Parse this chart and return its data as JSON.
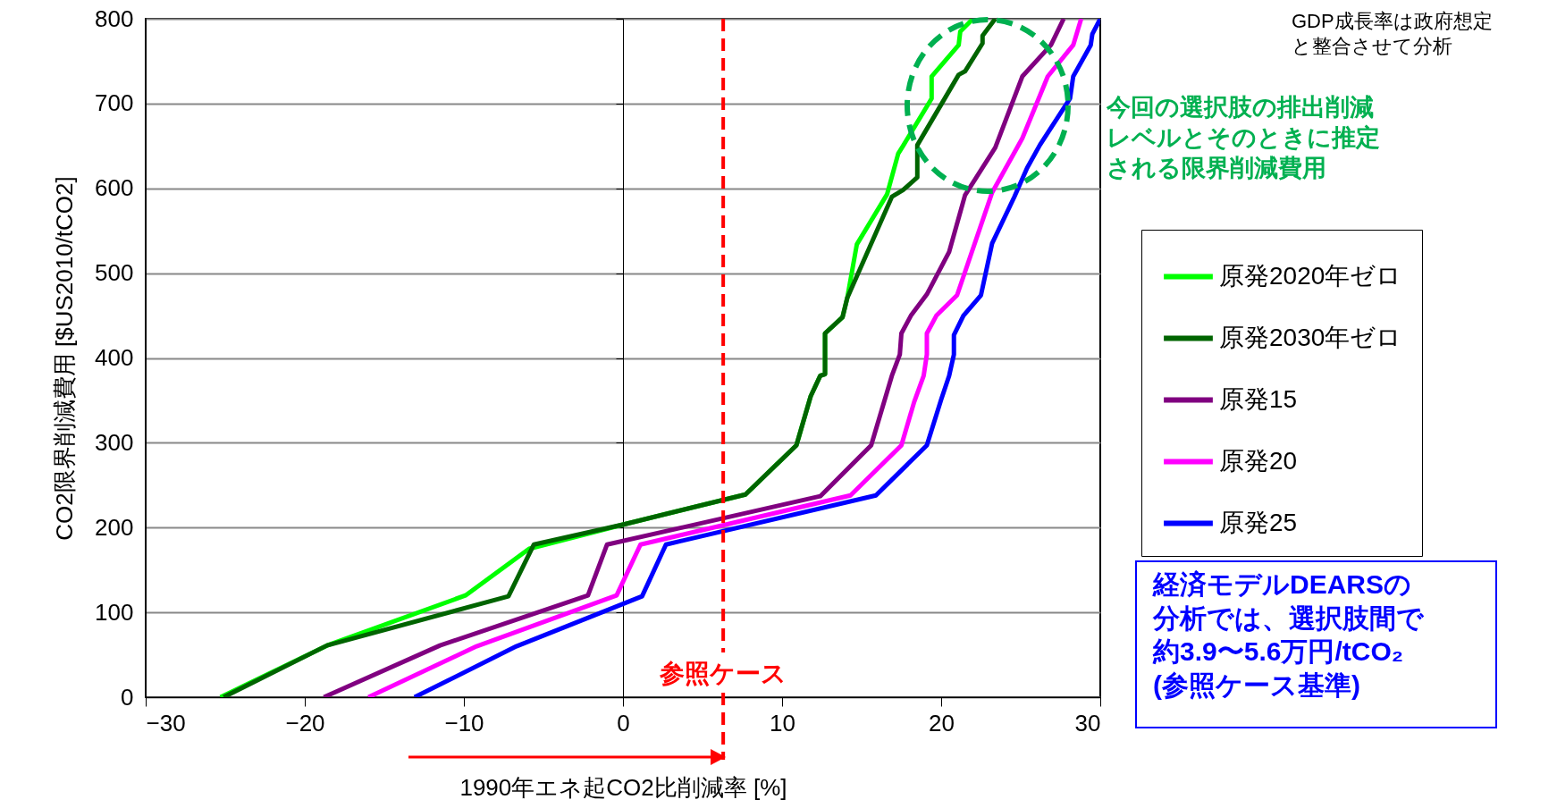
{
  "chart_data": {
    "type": "line",
    "xlabel": "1990年エネ起CO2比削減率 [%]",
    "ylabel": "CO2限界削減費用 [$US2010/tCO2]",
    "xlim": [
      -30,
      30
    ],
    "xticks": [
      -30,
      -20,
      -10,
      0,
      10,
      20,
      30
    ],
    "ylim": [
      0,
      800
    ],
    "yticks": [
      0,
      100,
      200,
      300,
      400,
      500,
      600,
      700,
      800
    ],
    "grid": "y",
    "legend": "right",
    "line_style": "solid",
    "marker": "none",
    "series": [
      {
        "name": "原発2020年ゼロ",
        "color": "#00ff00",
        "x": [
          -25.3,
          -18.6,
          -9.9,
          -5.9,
          0.1,
          7.7,
          10.9,
          11.8,
          12.4,
          12.7,
          12.7,
          13.8,
          14.1,
          14.7,
          16.6,
          17.3,
          17.6,
          19.4,
          19.4,
          21.1,
          21.2,
          22.0
        ],
        "values": [
          0,
          61,
          120,
          175,
          204,
          239,
          297,
          355,
          379,
          381,
          429,
          448,
          471,
          534,
          593,
          641,
          650,
          706,
          732,
          769,
          785,
          800
        ]
      },
      {
        "name": "原発2030年ゼロ",
        "color": "#006400",
        "x": [
          -25.1,
          -18.6,
          -7.2,
          -5.6,
          0.1,
          7.7,
          10.9,
          11.8,
          12.4,
          12.7,
          12.7,
          13.8,
          14.1,
          16.9,
          17.6,
          18.5,
          18.5,
          21.1,
          21.5,
          22.6,
          22.6,
          23.4
        ],
        "values": [
          0,
          61,
          119,
          180,
          204,
          239,
          297,
          355,
          379,
          381,
          429,
          448,
          471,
          590,
          598,
          613,
          651,
          734,
          738,
          771,
          780,
          800
        ]
      },
      {
        "name": "原発15",
        "color": "#800080",
        "x": [
          -18.8,
          -11.5,
          -2.2,
          -1.0,
          12.4,
          15.6,
          16.9,
          17.4,
          17.5,
          18.1,
          19.1,
          20.5,
          21.5,
          23.4,
          25.1,
          26.9,
          27.7
        ],
        "values": [
          0,
          61,
          120,
          180,
          237,
          297,
          379,
          404,
          429,
          450,
          475,
          525,
          592,
          648,
          732,
          769,
          800
        ]
      },
      {
        "name": "原発20",
        "color": "#ff00ff",
        "x": [
          -16.0,
          -9.2,
          -0.4,
          1.1,
          14.3,
          17.5,
          18.3,
          18.9,
          19.1,
          19.1,
          19.7,
          21.0,
          23.2,
          25.1,
          26.7,
          28.3,
          28.8
        ],
        "values": [
          0,
          60,
          120,
          180,
          238,
          297,
          348,
          379,
          404,
          429,
          450,
          474,
          595,
          659,
          732,
          769,
          800
        ]
      },
      {
        "name": "原発25",
        "color": "#0000ff",
        "x": [
          -13.1,
          -6.7,
          1.2,
          2.7,
          15.9,
          19.1,
          20.0,
          20.5,
          20.8,
          20.8,
          21.4,
          22.5,
          23.2,
          24.6,
          25.4,
          26.2,
          28.1,
          28.3,
          29.4,
          29.5,
          30.0
        ],
        "values": [
          0,
          60,
          119,
          180,
          238,
          297,
          351,
          379,
          404,
          427,
          450,
          474,
          535,
          590,
          624,
          651,
          706,
          732,
          769,
          782,
          800
        ]
      }
    ],
    "ref_lines": [
      {
        "axis": "x",
        "value": 6.3,
        "label": "参照ケース",
        "color": "#ff0000",
        "line_style": "dashed"
      }
    ],
    "annotations": [
      "GDP成長率は政府想定と整合させて分析",
      "今回の選択肢の排出削減レベルとそのときに推定される限界削減費用",
      "経済モデルDEARSの分析では、選択肢間で約3.9〜5.6万円/tCO₂(参照ケース基準)"
    ]
  }
}
